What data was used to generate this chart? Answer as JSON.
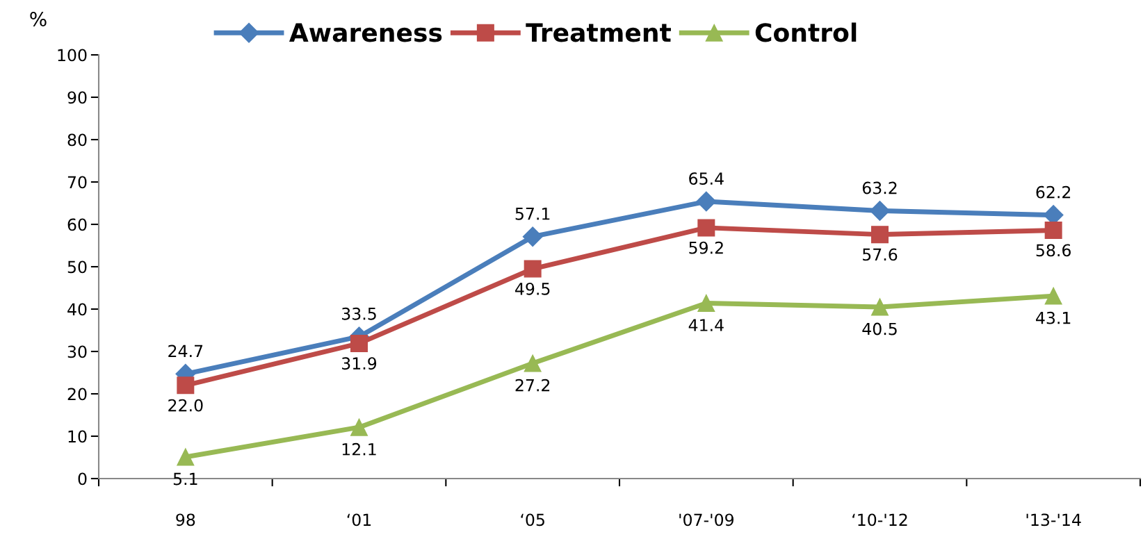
{
  "chart_data": {
    "type": "line",
    "ylabel": "%",
    "categories": [
      "98",
      "‘01",
      "‘05",
      "'07-'09",
      "‘10-'12",
      "'13-'14"
    ],
    "series": [
      {
        "name": "Awareness",
        "color": "#4a7ebb",
        "marker": "diamond",
        "values": [
          24.7,
          33.5,
          57.1,
          65.4,
          63.2,
          62.2
        ],
        "value_labels": [
          "24.7",
          "33.5",
          "57.1",
          "65.4",
          "63.2",
          "62.2"
        ]
      },
      {
        "name": "Treatment",
        "color": "#be4b48",
        "marker": "square",
        "values": [
          22.0,
          31.9,
          49.5,
          59.2,
          57.6,
          58.6
        ],
        "value_labels": [
          "22.0",
          "31.9",
          "49.5",
          "59.2",
          "57.6",
          "58.6"
        ]
      },
      {
        "name": "Control",
        "color": "#98b954",
        "marker": "triangle",
        "values": [
          5.1,
          12.1,
          27.2,
          41.4,
          40.5,
          43.1
        ],
        "value_labels": [
          "5.1",
          "12.1",
          "27.2",
          "41.4",
          "40.5",
          "43.1"
        ]
      }
    ],
    "ylim": [
      0,
      100
    ],
    "yticks": [
      0,
      10,
      20,
      30,
      40,
      50,
      60,
      70,
      80,
      90,
      100
    ],
    "grid": false,
    "legend": "top",
    "line_style": "solid"
  }
}
